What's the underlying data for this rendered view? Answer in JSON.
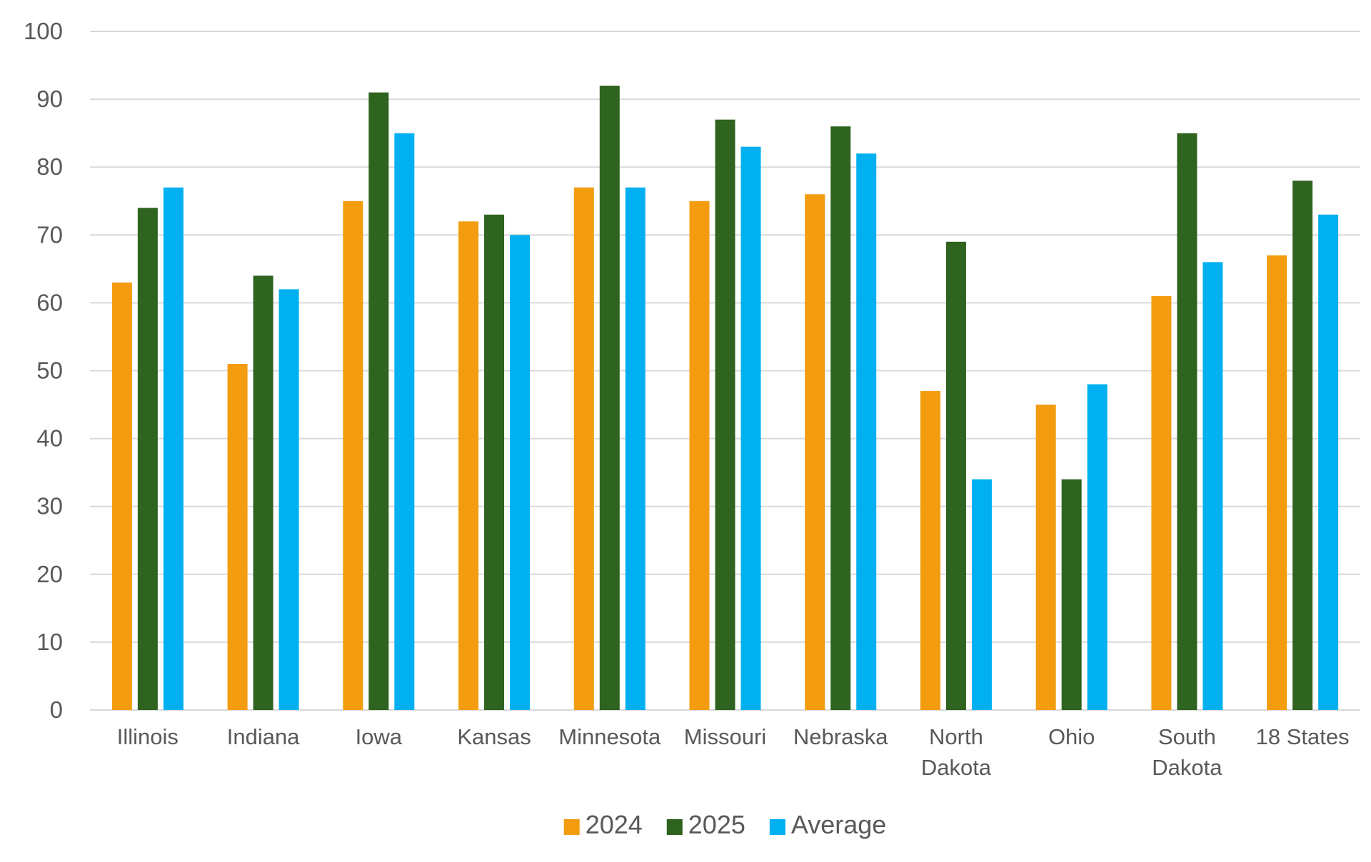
{
  "chart_data": {
    "type": "bar",
    "categories": [
      [
        "Illinois"
      ],
      [
        "Indiana"
      ],
      [
        "Iowa"
      ],
      [
        "Kansas"
      ],
      [
        "Minnesota"
      ],
      [
        "Missouri"
      ],
      [
        "Nebraska"
      ],
      [
        "North",
        "Dakota"
      ],
      [
        "Ohio"
      ],
      [
        "South",
        "Dakota"
      ],
      [
        "18 States"
      ]
    ],
    "series": [
      {
        "name": "2024",
        "color": "#f39c0f",
        "values": [
          63,
          51,
          75,
          72,
          77,
          75,
          76,
          47,
          45,
          61,
          67
        ]
      },
      {
        "name": "2025",
        "color": "#2e6320",
        "values": [
          74,
          64,
          91,
          73,
          92,
          87,
          86,
          69,
          34,
          85,
          78
        ]
      },
      {
        "name": "Average",
        "color": "#00b0f0",
        "values": [
          77,
          62,
          85,
          70,
          77,
          83,
          82,
          34,
          48,
          66,
          73
        ]
      }
    ],
    "title": "",
    "xlabel": "",
    "ylabel": "",
    "ylim": [
      0,
      100
    ],
    "yticks": [
      "0",
      "10",
      "20",
      "30",
      "40",
      "50",
      "60",
      "70",
      "80",
      "90",
      "100"
    ],
    "grid": true,
    "legend_position": "bottom"
  }
}
